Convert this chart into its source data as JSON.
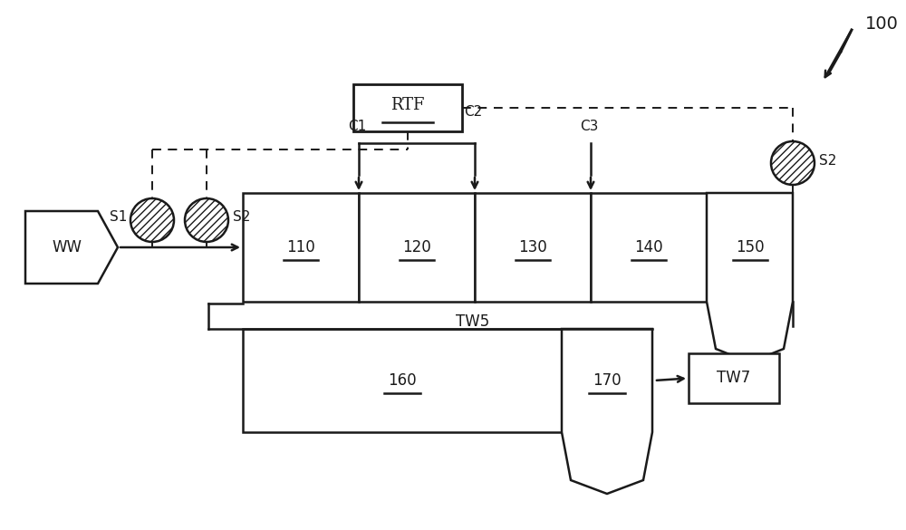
{
  "bg_color": "#ffffff",
  "line_color": "#1a1a1a",
  "fig_width": 10.0,
  "fig_height": 5.85,
  "dpi": 100,
  "label_100": "100",
  "label_rtf": "RTF",
  "label_ww": "WW",
  "label_s1": "S1",
  "label_s2": "S2",
  "label_c1": "C1",
  "label_c2": "C2",
  "label_c3": "C3",
  "label_110": "110",
  "label_120": "120",
  "label_130": "130",
  "label_140": "140",
  "label_150": "150",
  "label_160": "160",
  "label_170": "170",
  "label_tw5": "TW5",
  "label_tw7": "TW7"
}
